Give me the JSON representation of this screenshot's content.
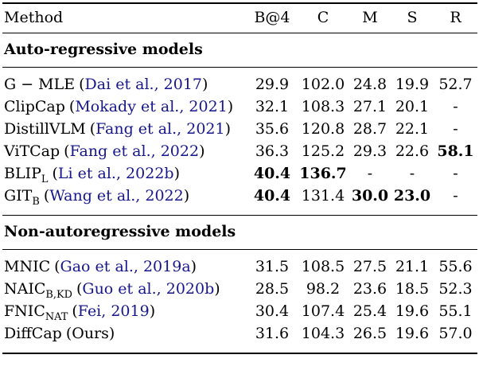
{
  "table": {
    "paren_open": "(",
    "paren_close": ")",
    "colors": {
      "citation": "#16168d",
      "text": "#000000",
      "rule": "#000000",
      "background": "#ffffff"
    },
    "columns": [
      "Method",
      "B@4",
      "C",
      "M",
      "S",
      "R"
    ],
    "sections": [
      {
        "title": "Auto-regressive models",
        "rows": [
          {
            "name": "G − MLE",
            "sub": "",
            "cite": "Dai et al., 2017",
            "cite_link": true,
            "values": [
              "29.9",
              "102.0",
              "24.8",
              "19.9",
              "52.7"
            ],
            "bold": [
              false,
              false,
              false,
              false,
              false
            ]
          },
          {
            "name": "ClipCap",
            "sub": "",
            "cite": "Mokady et al., 2021",
            "cite_link": true,
            "values": [
              "32.1",
              "108.3",
              "27.1",
              "20.1",
              "-"
            ],
            "bold": [
              false,
              false,
              false,
              false,
              false
            ]
          },
          {
            "name": "DistillVLM",
            "sub": "",
            "cite": "Fang et al., 2021",
            "cite_link": true,
            "values": [
              "35.6",
              "120.8",
              "28.7",
              "22.1",
              "-"
            ],
            "bold": [
              false,
              false,
              false,
              false,
              false
            ]
          },
          {
            "name": "ViTCap",
            "sub": "",
            "cite": "Fang et al., 2022",
            "cite_link": true,
            "values": [
              "36.3",
              "125.2",
              "29.3",
              "22.6",
              "58.1"
            ],
            "bold": [
              false,
              false,
              false,
              false,
              true
            ]
          },
          {
            "name": "BLIP",
            "sub": "L",
            "cite": "Li et al., 2022b",
            "cite_link": true,
            "values": [
              "40.4",
              "136.7",
              "-",
              "-",
              "-"
            ],
            "bold": [
              true,
              true,
              false,
              false,
              false
            ]
          },
          {
            "name": "GIT",
            "sub": "B",
            "cite": "Wang et al., 2022",
            "cite_link": true,
            "values": [
              "40.4",
              "131.4",
              "30.0",
              "23.0",
              "-"
            ],
            "bold": [
              true,
              false,
              true,
              true,
              false
            ]
          }
        ]
      },
      {
        "title": "Non-autoregressive models",
        "rows": [
          {
            "name": "MNIC",
            "sub": "",
            "cite": "Gao et al., 2019a",
            "cite_link": true,
            "values": [
              "31.5",
              "108.5",
              "27.5",
              "21.1",
              "55.6"
            ],
            "bold": [
              false,
              false,
              false,
              false,
              false
            ]
          },
          {
            "name": "NAIC",
            "sub": "B,KD",
            "cite": "Guo et al., 2020b",
            "cite_link": true,
            "values": [
              "28.5",
              "98.2",
              "23.6",
              "18.5",
              "52.3"
            ],
            "bold": [
              false,
              false,
              false,
              false,
              false
            ]
          },
          {
            "name": "FNIC",
            "sub": "NAT",
            "cite": "Fei, 2019",
            "cite_link": true,
            "values": [
              "30.4",
              "107.4",
              "25.4",
              "19.6",
              "55.1"
            ],
            "bold": [
              false,
              false,
              false,
              false,
              false
            ]
          },
          {
            "name": "DiffCap",
            "sub": "",
            "cite": "Ours",
            "cite_link": false,
            "values": [
              "31.6",
              "104.3",
              "26.5",
              "19.6",
              "57.0"
            ],
            "bold": [
              false,
              false,
              false,
              false,
              false
            ]
          }
        ]
      }
    ]
  }
}
